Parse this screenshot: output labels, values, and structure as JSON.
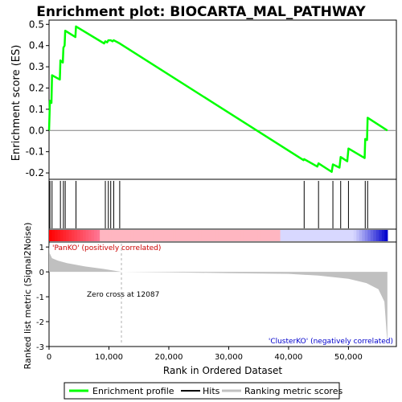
{
  "chart_data": {
    "type": "line",
    "title": "Enrichment plot: BIOCARTA_MAL_PATHWAY",
    "xlabel": "Rank in Ordered Dataset",
    "top_panel": {
      "ylabel": "Enrichment score (ES)",
      "ylim": [
        -0.23,
        0.52
      ],
      "yticks": [
        "0.5",
        "0.4",
        "0.3",
        "0.2",
        "0.1",
        "0.0",
        "-0.1",
        "-0.2"
      ],
      "series": [
        {
          "name": "Enrichment profile",
          "color": "#00ff00",
          "points": [
            [
              0,
              0.0
            ],
            [
              150,
              0.14
            ],
            [
              400,
              0.13
            ],
            [
              500,
              0.26
            ],
            [
              1800,
              0.24
            ],
            [
              1900,
              0.33
            ],
            [
              2300,
              0.32
            ],
            [
              2400,
              0.39
            ],
            [
              2600,
              0.4
            ],
            [
              2700,
              0.47
            ],
            [
              4400,
              0.44
            ],
            [
              4500,
              0.49
            ],
            [
              9200,
              0.41
            ],
            [
              9400,
              0.42
            ],
            [
              9700,
              0.415
            ],
            [
              9900,
              0.425
            ],
            [
              10300,
              0.425
            ],
            [
              10600,
              0.42
            ],
            [
              10800,
              0.425
            ],
            [
              11800,
              0.41
            ],
            [
              42500,
              -0.14
            ],
            [
              42600,
              -0.135
            ],
            [
              44800,
              -0.17
            ],
            [
              45000,
              -0.155
            ],
            [
              47200,
              -0.195
            ],
            [
              47400,
              -0.16
            ],
            [
              48500,
              -0.175
            ],
            [
              48700,
              -0.125
            ],
            [
              49800,
              -0.145
            ],
            [
              50000,
              -0.085
            ],
            [
              52700,
              -0.13
            ],
            [
              52800,
              -0.04
            ],
            [
              53100,
              -0.045
            ],
            [
              53200,
              0.06
            ],
            [
              56500,
              0.0
            ]
          ]
        }
      ]
    },
    "hits": {
      "name": "Hits",
      "color": "#000000",
      "ranks": [
        150,
        500,
        1900,
        2400,
        2700,
        4500,
        9400,
        9900,
        10300,
        10800,
        11800,
        42600,
        45000,
        47400,
        48700,
        50000,
        52800,
        53200
      ]
    },
    "rank_bar": {
      "colors": [
        "#ff0000",
        "#ffb6c1",
        "#d8d8ff",
        "#0000cc"
      ],
      "positive_end": 12087
    },
    "bottom_panel": {
      "ylabel": "Ranked list metric (Signal2Noise)",
      "ylim": [
        -3,
        1.2
      ],
      "yticks": [
        "1",
        "0",
        "-1",
        "-2",
        "-3"
      ],
      "series": [
        {
          "name": "Ranking metric scores",
          "color": "#c0c0c0",
          "points": [
            [
              0,
              1.2
            ],
            [
              100,
              0.75
            ],
            [
              500,
              0.55
            ],
            [
              1500,
              0.45
            ],
            [
              3000,
              0.35
            ],
            [
              6000,
              0.22
            ],
            [
              9000,
              0.12
            ],
            [
              12087,
              0.0
            ],
            [
              20000,
              -0.02
            ],
            [
              30000,
              -0.05
            ],
            [
              40000,
              -0.08
            ],
            [
              45000,
              -0.15
            ],
            [
              50000,
              -0.28
            ],
            [
              53000,
              -0.45
            ],
            [
              55000,
              -0.7
            ],
            [
              56000,
              -1.2
            ],
            [
              56500,
              -2.9
            ]
          ]
        }
      ],
      "zero_cross_text": "Zero cross at 12087",
      "zero_cross": 12087,
      "pos_label": "'PanKO' (positively correlated)",
      "neg_label": "'ClusterKO' (negatively correlated)"
    },
    "xlim": [
      0,
      58000
    ],
    "xticks": [
      "0",
      "10,000",
      "20,000",
      "30,000",
      "40,000",
      "50,000"
    ],
    "xtick_values": [
      0,
      10000,
      20000,
      30000,
      40000,
      50000
    ],
    "legend": {
      "placement": "bottom",
      "entries": [
        "Enrichment profile",
        "Hits",
        "Ranking metric scores"
      ]
    }
  }
}
